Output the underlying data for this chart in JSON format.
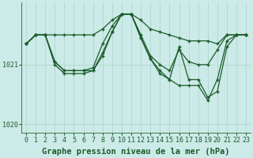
{
  "background_color": "#cceae7",
  "line_color": "#1a5c2a",
  "grid_color": "#b0d8d0",
  "xlabel": "Graphe pression niveau de la mer (hPa)",
  "xlabel_fontsize": 7.5,
  "tick_fontsize": 6,
  "ylim": [
    1019.85,
    1022.05
  ],
  "xlim": [
    -0.5,
    23.5
  ],
  "series": [
    [
      1021.35,
      1021.5,
      1021.5,
      1021.5,
      1021.5,
      1021.5,
      1021.5,
      1021.5,
      1021.6,
      1021.75,
      1021.85,
      1021.85,
      1021.75,
      1021.6,
      1021.55,
      1021.5,
      1021.45,
      1021.4,
      1021.4,
      1021.4,
      1021.35,
      1021.5,
      1021.5,
      1021.5
    ],
    [
      1021.35,
      1021.5,
      1021.5,
      1021.05,
      1020.9,
      1020.9,
      1020.9,
      1020.9,
      1021.2,
      1021.55,
      1021.85,
      1021.85,
      1021.5,
      1021.15,
      1021.0,
      1020.9,
      1021.25,
      1021.05,
      1021.0,
      1021.0,
      1021.25,
      1021.5,
      1021.5,
      1021.5
    ],
    [
      1021.35,
      1021.5,
      1021.5,
      1021.05,
      1020.9,
      1020.9,
      1020.9,
      1020.95,
      1021.35,
      1021.65,
      1021.85,
      1021.85,
      1021.45,
      1021.1,
      1020.85,
      1020.75,
      1020.65,
      1020.65,
      1020.65,
      1020.4,
      1020.75,
      1021.4,
      1021.5,
      1021.5
    ],
    [
      1021.35,
      1021.5,
      1021.5,
      1021.0,
      1020.85,
      1020.85,
      1020.85,
      1020.9,
      1021.15,
      1021.55,
      1021.85,
      1021.85,
      1021.45,
      1021.1,
      1020.9,
      1020.75,
      1021.3,
      1020.75,
      1020.75,
      1020.45,
      1020.55,
      1021.3,
      1021.5,
      1021.5
    ]
  ]
}
